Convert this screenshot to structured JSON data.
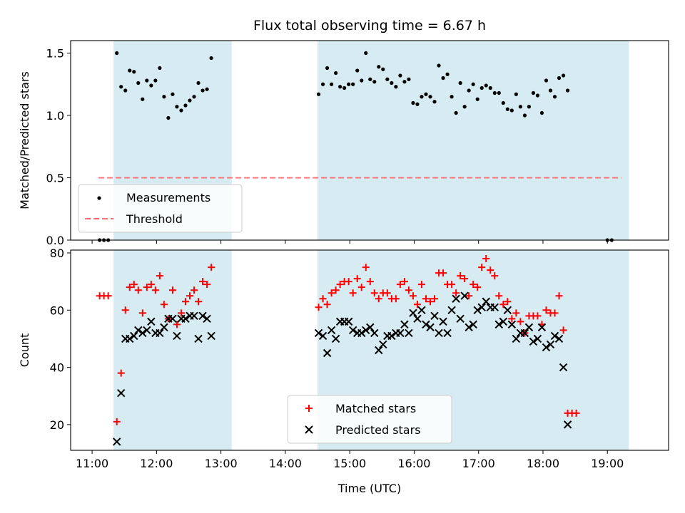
{
  "chart_data": [
    {
      "type": "scatter",
      "title": "Flux total observing time = 6.67 h",
      "ylabel": "Matched/Predicted stars",
      "xlabel": "",
      "ylim": [
        0,
        1.6
      ],
      "xlim": [
        "10:40",
        "19:57"
      ],
      "grid": false,
      "legend_position": "bottom-left",
      "y_ticks": [
        "0.0",
        "0.5",
        "1.0",
        "1.5"
      ],
      "shaded_intervals": [
        [
          "11:20",
          "13:10"
        ],
        [
          "14:30",
          "19:20"
        ]
      ],
      "series": [
        {
          "name": "Measurements",
          "color": "#000000",
          "marker": "dot",
          "points": [
            [
              "11:07",
              0.0
            ],
            [
              "11:11",
              0.0
            ],
            [
              "11:15",
              0.0
            ],
            [
              "11:23",
              1.5
            ],
            [
              "11:27",
              1.23
            ],
            [
              "11:31",
              1.2
            ],
            [
              "11:35",
              1.36
            ],
            [
              "11:39",
              1.35
            ],
            [
              "11:43",
              1.26
            ],
            [
              "11:47",
              1.13
            ],
            [
              "11:51",
              1.28
            ],
            [
              "11:55",
              1.24
            ],
            [
              "11:59",
              1.28
            ],
            [
              "12:03",
              1.38
            ],
            [
              "12:07",
              1.15
            ],
            [
              "12:11",
              0.98
            ],
            [
              "12:15",
              1.17
            ],
            [
              "12:19",
              1.07
            ],
            [
              "12:23",
              1.04
            ],
            [
              "12:27",
              1.08
            ],
            [
              "12:31",
              1.12
            ],
            [
              "12:35",
              1.15
            ],
            [
              "12:39",
              1.26
            ],
            [
              "12:43",
              1.2
            ],
            [
              "12:47",
              1.21
            ],
            [
              "12:51",
              1.46
            ],
            [
              "14:31",
              1.17
            ],
            [
              "14:35",
              1.25
            ],
            [
              "14:39",
              1.38
            ],
            [
              "14:43",
              1.25
            ],
            [
              "14:47",
              1.34
            ],
            [
              "14:51",
              1.23
            ],
            [
              "14:55",
              1.22
            ],
            [
              "14:59",
              1.25
            ],
            [
              "15:03",
              1.25
            ],
            [
              "15:07",
              1.36
            ],
            [
              "15:11",
              1.28
            ],
            [
              "15:15",
              1.5
            ],
            [
              "15:19",
              1.29
            ],
            [
              "15:23",
              1.27
            ],
            [
              "15:27",
              1.39
            ],
            [
              "15:31",
              1.37
            ],
            [
              "15:35",
              1.29
            ],
            [
              "15:39",
              1.26
            ],
            [
              "15:43",
              1.23
            ],
            [
              "15:47",
              1.32
            ],
            [
              "15:51",
              1.27
            ],
            [
              "15:55",
              1.29
            ],
            [
              "15:59",
              1.1
            ],
            [
              "16:03",
              1.09
            ],
            [
              "16:07",
              1.15
            ],
            [
              "16:11",
              1.17
            ],
            [
              "16:15",
              1.15
            ],
            [
              "16:19",
              1.11
            ],
            [
              "16:23",
              1.4
            ],
            [
              "16:27",
              1.3
            ],
            [
              "16:31",
              1.33
            ],
            [
              "16:35",
              1.15
            ],
            [
              "16:39",
              1.02
            ],
            [
              "16:43",
              1.26
            ],
            [
              "16:47",
              1.07
            ],
            [
              "16:51",
              1.2
            ],
            [
              "16:55",
              1.25
            ],
            [
              "16:59",
              1.13
            ],
            [
              "17:03",
              1.22
            ],
            [
              "17:07",
              1.24
            ],
            [
              "17:11",
              1.22
            ],
            [
              "17:15",
              1.18
            ],
            [
              "17:19",
              1.18
            ],
            [
              "17:23",
              1.1
            ],
            [
              "17:27",
              1.05
            ],
            [
              "17:31",
              1.04
            ],
            [
              "17:35",
              1.17
            ],
            [
              "17:39",
              1.07
            ],
            [
              "17:43",
              1.0
            ],
            [
              "17:47",
              1.07
            ],
            [
              "17:51",
              1.18
            ],
            [
              "17:55",
              1.16
            ],
            [
              "17:59",
              1.02
            ],
            [
              "18:03",
              1.28
            ],
            [
              "18:07",
              1.2
            ],
            [
              "18:11",
              1.15
            ],
            [
              "18:15",
              1.3
            ],
            [
              "18:19",
              1.32
            ],
            [
              "18:23",
              1.2
            ],
            [
              "19:00",
              0.0
            ],
            [
              "19:04",
              0.0
            ]
          ]
        },
        {
          "name": "Threshold",
          "color": "#ff6f6f",
          "style": "dashed",
          "points": [
            [
              "11:06",
              0.5
            ],
            [
              "19:13",
              0.5
            ]
          ]
        }
      ]
    },
    {
      "type": "scatter",
      "title": "",
      "ylabel": "Count",
      "xlabel": "Time (UTC)",
      "ylim": [
        11,
        81
      ],
      "xlim": [
        "10:40",
        "19:57"
      ],
      "grid": false,
      "legend_position": "bottom-center",
      "y_ticks": [
        "20",
        "40",
        "60",
        "80"
      ],
      "x_ticks": [
        "11:00",
        "12:00",
        "13:00",
        "14:00",
        "15:00",
        "16:00",
        "17:00",
        "18:00",
        "19:00"
      ],
      "series": [
        {
          "name": "Matched stars",
          "color": "#ff0000",
          "marker": "plus",
          "points": [
            [
              "11:07",
              65
            ],
            [
              "11:11",
              65
            ],
            [
              "11:15",
              65
            ],
            [
              "11:23",
              21
            ],
            [
              "11:27",
              38
            ],
            [
              "11:31",
              60
            ],
            [
              "11:35",
              68
            ],
            [
              "11:39",
              69
            ],
            [
              "11:43",
              67
            ],
            [
              "11:47",
              59
            ],
            [
              "11:51",
              68
            ],
            [
              "11:55",
              69
            ],
            [
              "11:59",
              67
            ],
            [
              "12:03",
              72
            ],
            [
              "12:07",
              62
            ],
            [
              "12:11",
              57
            ],
            [
              "12:15",
              67
            ],
            [
              "12:19",
              55
            ],
            [
              "12:23",
              59
            ],
            [
              "12:27",
              63
            ],
            [
              "12:31",
              65
            ],
            [
              "12:35",
              67
            ],
            [
              "12:39",
              63
            ],
            [
              "12:43",
              70
            ],
            [
              "12:47",
              69
            ],
            [
              "12:51",
              75
            ],
            [
              "14:31",
              61
            ],
            [
              "14:35",
              64
            ],
            [
              "14:39",
              62
            ],
            [
              "14:43",
              66
            ],
            [
              "14:47",
              67
            ],
            [
              "14:51",
              69
            ],
            [
              "14:55",
              70
            ],
            [
              "14:59",
              70
            ],
            [
              "15:03",
              66
            ],
            [
              "15:07",
              71
            ],
            [
              "15:11",
              68
            ],
            [
              "15:15",
              75
            ],
            [
              "15:19",
              70
            ],
            [
              "15:23",
              66
            ],
            [
              "15:27",
              64
            ],
            [
              "15:31",
              66
            ],
            [
              "15:35",
              66
            ],
            [
              "15:39",
              64
            ],
            [
              "15:43",
              64
            ],
            [
              "15:47",
              69
            ],
            [
              "15:51",
              70
            ],
            [
              "15:55",
              67
            ],
            [
              "15:59",
              65
            ],
            [
              "16:03",
              62
            ],
            [
              "16:07",
              69
            ],
            [
              "16:11",
              64
            ],
            [
              "16:15",
              63
            ],
            [
              "16:19",
              64
            ],
            [
              "16:23",
              73
            ],
            [
              "16:27",
              73
            ],
            [
              "16:31",
              69
            ],
            [
              "16:35",
              69
            ],
            [
              "16:39",
              66
            ],
            [
              "16:43",
              72
            ],
            [
              "16:47",
              71
            ],
            [
              "16:51",
              65
            ],
            [
              "16:55",
              69
            ],
            [
              "16:59",
              68
            ],
            [
              "17:03",
              75
            ],
            [
              "17:07",
              78
            ],
            [
              "17:11",
              74
            ],
            [
              "17:15",
              72
            ],
            [
              "17:19",
              65
            ],
            [
              "17:23",
              62
            ],
            [
              "17:27",
              63
            ],
            [
              "17:31",
              57
            ],
            [
              "17:35",
              59
            ],
            [
              "17:39",
              56
            ],
            [
              "17:43",
              52
            ],
            [
              "17:47",
              58
            ],
            [
              "17:51",
              58
            ],
            [
              "17:55",
              58
            ],
            [
              "17:59",
              55
            ],
            [
              "18:03",
              60
            ],
            [
              "18:07",
              59
            ],
            [
              "18:11",
              59
            ],
            [
              "18:15",
              65
            ],
            [
              "18:19",
              53
            ],
            [
              "18:23",
              24
            ],
            [
              "18:27",
              24
            ],
            [
              "18:31",
              24
            ]
          ]
        },
        {
          "name": "Predicted stars",
          "color": "#000000",
          "marker": "x",
          "points": [
            [
              "11:23",
              14
            ],
            [
              "11:27",
              31
            ],
            [
              "11:31",
              50
            ],
            [
              "11:35",
              50
            ],
            [
              "11:39",
              51
            ],
            [
              "11:43",
              53
            ],
            [
              "11:47",
              52
            ],
            [
              "11:51",
              53
            ],
            [
              "11:55",
              56
            ],
            [
              "11:59",
              52
            ],
            [
              "12:03",
              52
            ],
            [
              "12:07",
              54
            ],
            [
              "12:11",
              57
            ],
            [
              "12:15",
              57
            ],
            [
              "12:19",
              51
            ],
            [
              "12:23",
              57
            ],
            [
              "12:27",
              57
            ],
            [
              "12:31",
              58
            ],
            [
              "12:35",
              58
            ],
            [
              "12:39",
              50
            ],
            [
              "12:43",
              58
            ],
            [
              "12:47",
              57
            ],
            [
              "12:51",
              51
            ],
            [
              "14:31",
              52
            ],
            [
              "14:35",
              51
            ],
            [
              "14:39",
              45
            ],
            [
              "14:43",
              53
            ],
            [
              "14:47",
              50
            ],
            [
              "14:51",
              56
            ],
            [
              "14:55",
              56
            ],
            [
              "14:59",
              56
            ],
            [
              "15:03",
              53
            ],
            [
              "15:07",
              52
            ],
            [
              "15:11",
              52
            ],
            [
              "15:15",
              53
            ],
            [
              "15:19",
              54
            ],
            [
              "15:23",
              52
            ],
            [
              "15:27",
              46
            ],
            [
              "15:31",
              48
            ],
            [
              "15:35",
              51
            ],
            [
              "15:39",
              51
            ],
            [
              "15:43",
              52
            ],
            [
              "15:47",
              52
            ],
            [
              "15:51",
              55
            ],
            [
              "15:55",
              52
            ],
            [
              "15:59",
              59
            ],
            [
              "16:03",
              57
            ],
            [
              "16:07",
              60
            ],
            [
              "16:11",
              55
            ],
            [
              "16:15",
              54
            ],
            [
              "16:19",
              58
            ],
            [
              "16:23",
              52
            ],
            [
              "16:27",
              56
            ],
            [
              "16:31",
              52
            ],
            [
              "16:35",
              60
            ],
            [
              "16:39",
              64
            ],
            [
              "16:43",
              57
            ],
            [
              "16:47",
              65
            ],
            [
              "16:51",
              54
            ],
            [
              "16:55",
              55
            ],
            [
              "16:59",
              60
            ],
            [
              "17:03",
              61
            ],
            [
              "17:07",
              63
            ],
            [
              "17:11",
              61
            ],
            [
              "17:15",
              61
            ],
            [
              "17:19",
              55
            ],
            [
              "17:23",
              56
            ],
            [
              "17:27",
              60
            ],
            [
              "17:31",
              55
            ],
            [
              "17:35",
              50
            ],
            [
              "17:39",
              52
            ],
            [
              "17:43",
              52
            ],
            [
              "17:47",
              54
            ],
            [
              "17:51",
              49
            ],
            [
              "17:55",
              50
            ],
            [
              "17:59",
              54
            ],
            [
              "18:03",
              47
            ],
            [
              "18:07",
              48
            ],
            [
              "18:11",
              51
            ],
            [
              "18:15",
              50
            ],
            [
              "18:19",
              40
            ],
            [
              "18:23",
              20
            ]
          ]
        }
      ]
    }
  ]
}
